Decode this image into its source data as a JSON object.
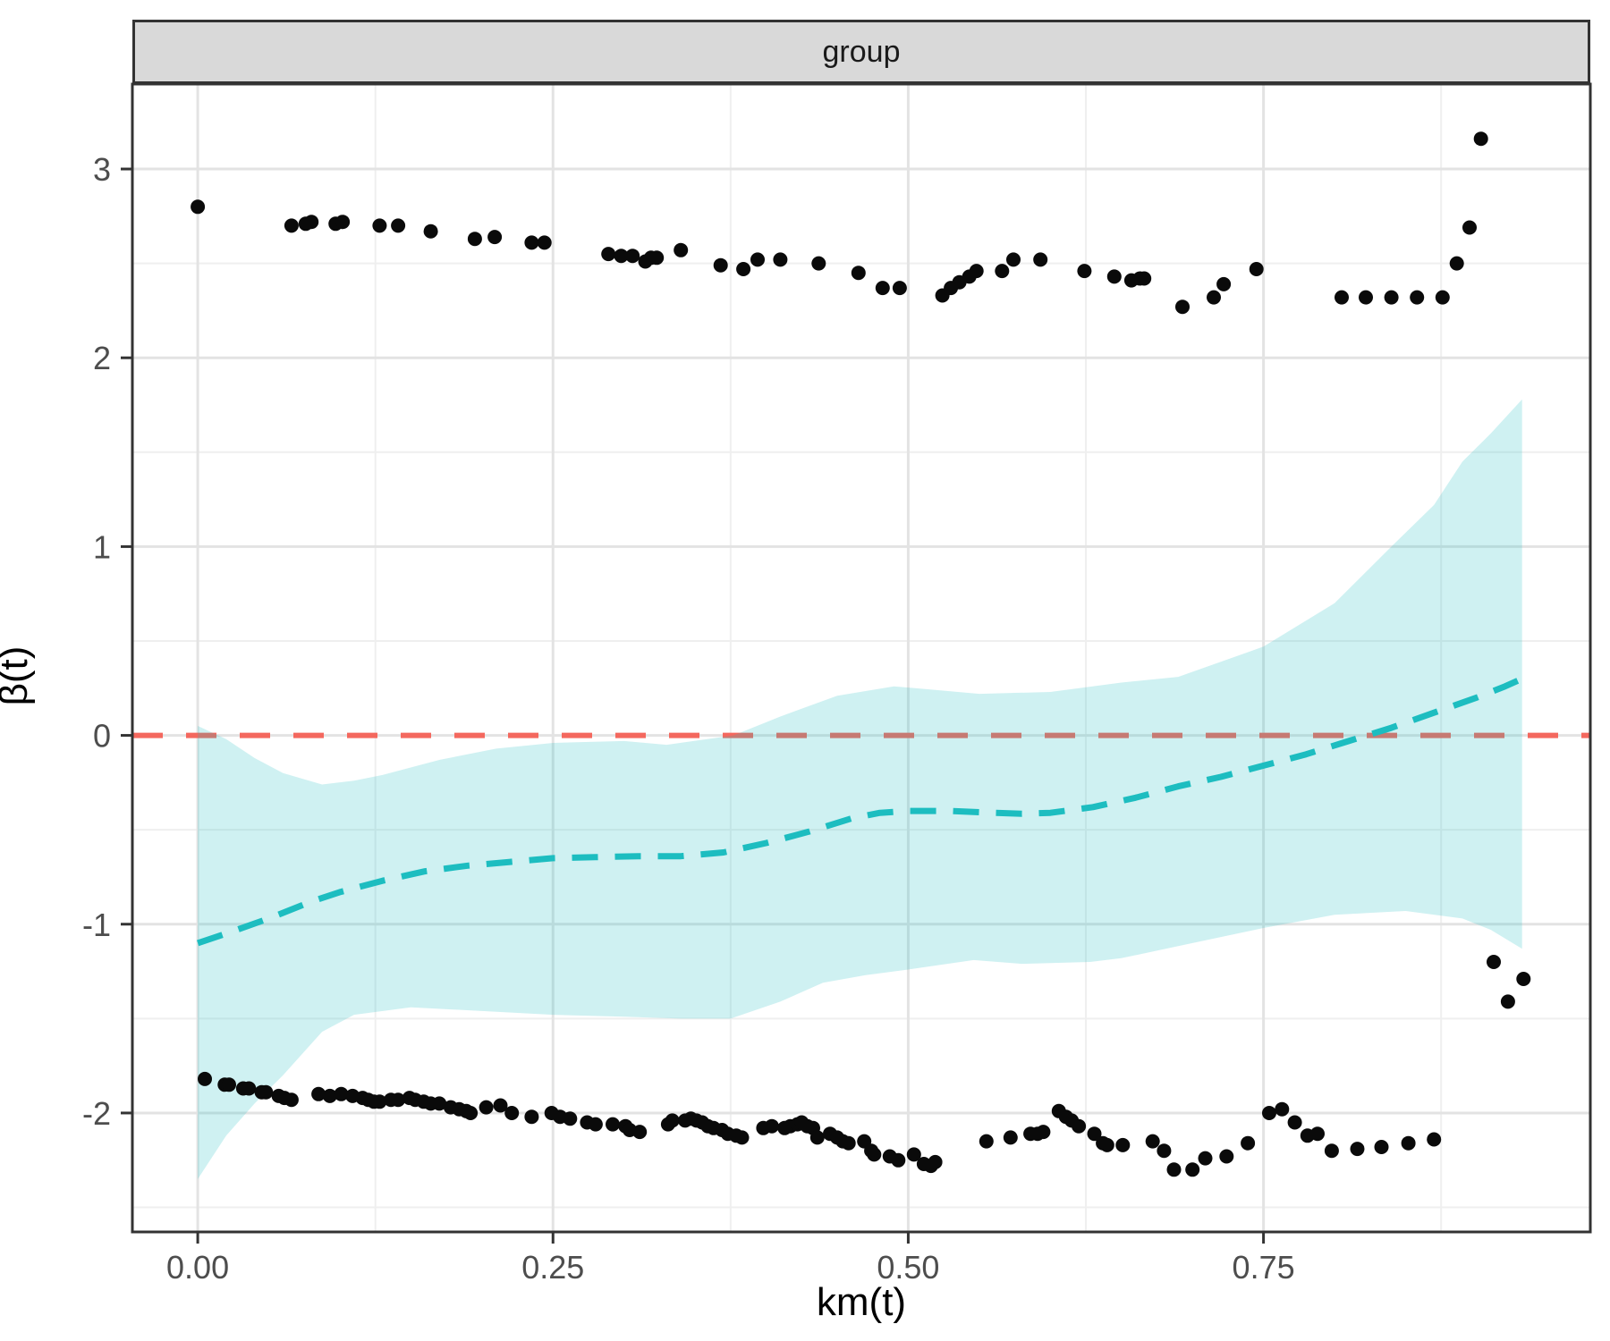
{
  "facet": {
    "label": "group"
  },
  "x_axis": {
    "title": "km(t)",
    "tick_labels": [
      "0.00",
      "0.25",
      "0.50",
      "0.75"
    ],
    "tick_values": [
      0,
      0.25,
      0.5,
      0.75
    ]
  },
  "y_axis": {
    "title": "β(t)",
    "tick_labels": [
      "-2",
      "-1",
      "0",
      "1",
      "2",
      "3"
    ],
    "tick_values": [
      -2,
      -1,
      0,
      1,
      2,
      3
    ]
  },
  "colors": {
    "reference_line": "#F4685E",
    "smooth_line": "#1DBDC0",
    "ribbon_fill": "#1DBDC0",
    "ribbon_opacity": 0.21,
    "point": "#0A0A0A",
    "grid_major": "#E3E3E3",
    "grid_minor": "#EFEFEF",
    "panel_border": "#333333",
    "strip_fill": "#D9D9D9",
    "tick_label": "#4D4D4D",
    "tick_mark": "#333333"
  },
  "chart_data": {
    "type": "scatter",
    "title": "group",
    "xlabel": "km(t)",
    "ylabel": "β(t)",
    "xlim": [
      -0.046,
      0.98
    ],
    "ylim": [
      -2.63,
      3.45
    ],
    "x_major": [
      0,
      0.25,
      0.5,
      0.75
    ],
    "x_minor": [
      0.125,
      0.375,
      0.625,
      0.875
    ],
    "y_major": [
      -2,
      -1,
      0,
      1,
      2,
      3
    ],
    "y_minor": [
      -2.5,
      -1.5,
      -0.5,
      0.5,
      1.5,
      2.5
    ],
    "reference_line_y": 0,
    "smooth_line": [
      [
        0.0,
        -1.1
      ],
      [
        0.02,
        -1.05
      ],
      [
        0.05,
        -0.97
      ],
      [
        0.08,
        -0.88
      ],
      [
        0.1,
        -0.83
      ],
      [
        0.13,
        -0.77
      ],
      [
        0.16,
        -0.72
      ],
      [
        0.19,
        -0.69
      ],
      [
        0.22,
        -0.67
      ],
      [
        0.25,
        -0.65
      ],
      [
        0.28,
        -0.645
      ],
      [
        0.31,
        -0.64
      ],
      [
        0.34,
        -0.64
      ],
      [
        0.37,
        -0.62
      ],
      [
        0.4,
        -0.57
      ],
      [
        0.43,
        -0.51
      ],
      [
        0.46,
        -0.44
      ],
      [
        0.48,
        -0.41
      ],
      [
        0.5,
        -0.4
      ],
      [
        0.53,
        -0.4
      ],
      [
        0.56,
        -0.41
      ],
      [
        0.58,
        -0.415
      ],
      [
        0.6,
        -0.41
      ],
      [
        0.63,
        -0.38
      ],
      [
        0.66,
        -0.33
      ],
      [
        0.69,
        -0.27
      ],
      [
        0.72,
        -0.22
      ],
      [
        0.75,
        -0.16
      ],
      [
        0.78,
        -0.1
      ],
      [
        0.81,
        -0.03
      ],
      [
        0.84,
        0.04
      ],
      [
        0.87,
        0.12
      ],
      [
        0.9,
        0.2
      ],
      [
        0.92,
        0.26
      ],
      [
        0.932,
        0.3
      ]
    ],
    "ribbon_upper": [
      [
        0.0,
        0.05
      ],
      [
        0.02,
        -0.02
      ],
      [
        0.04,
        -0.12
      ],
      [
        0.06,
        -0.2
      ],
      [
        0.0875,
        -0.26
      ],
      [
        0.11,
        -0.24
      ],
      [
        0.13,
        -0.21
      ],
      [
        0.17,
        -0.13
      ],
      [
        0.21,
        -0.07
      ],
      [
        0.25,
        -0.04
      ],
      [
        0.3,
        -0.03
      ],
      [
        0.33,
        -0.05
      ],
      [
        0.377,
        0.0
      ],
      [
        0.41,
        0.1
      ],
      [
        0.45,
        0.21
      ],
      [
        0.49,
        0.26
      ],
      [
        0.52,
        0.24
      ],
      [
        0.55,
        0.22
      ],
      [
        0.6,
        0.23
      ],
      [
        0.65,
        0.28
      ],
      [
        0.69,
        0.31
      ],
      [
        0.75,
        0.47
      ],
      [
        0.8,
        0.7
      ],
      [
        0.84,
        1.0
      ],
      [
        0.87,
        1.22
      ],
      [
        0.89,
        1.45
      ],
      [
        0.91,
        1.6
      ],
      [
        0.932,
        1.78
      ]
    ],
    "ribbon_lower": [
      [
        0.0,
        -2.35
      ],
      [
        0.02,
        -2.12
      ],
      [
        0.04,
        -1.95
      ],
      [
        0.06,
        -1.8
      ],
      [
        0.0875,
        -1.57
      ],
      [
        0.11,
        -1.48
      ],
      [
        0.15,
        -1.44
      ],
      [
        0.2,
        -1.46
      ],
      [
        0.25,
        -1.48
      ],
      [
        0.3,
        -1.49
      ],
      [
        0.34,
        -1.5
      ],
      [
        0.375,
        -1.5
      ],
      [
        0.41,
        -1.41
      ],
      [
        0.44,
        -1.31
      ],
      [
        0.47,
        -1.27
      ],
      [
        0.5,
        -1.24
      ],
      [
        0.546,
        -1.19
      ],
      [
        0.58,
        -1.21
      ],
      [
        0.628,
        -1.2
      ],
      [
        0.65,
        -1.18
      ],
      [
        0.7,
        -1.1
      ],
      [
        0.75,
        -1.02
      ],
      [
        0.8,
        -0.95
      ],
      [
        0.85,
        -0.93
      ],
      [
        0.89,
        -0.97
      ],
      [
        0.91,
        -1.03
      ],
      [
        0.932,
        -1.13
      ]
    ],
    "points_upper": [
      [
        0.0,
        2.8
      ],
      [
        0.066,
        2.7
      ],
      [
        0.076,
        2.71
      ],
      [
        0.08,
        2.72
      ],
      [
        0.097,
        2.71
      ],
      [
        0.102,
        2.72
      ],
      [
        0.128,
        2.7
      ],
      [
        0.141,
        2.7
      ],
      [
        0.164,
        2.67
      ],
      [
        0.195,
        2.63
      ],
      [
        0.209,
        2.64
      ],
      [
        0.235,
        2.61
      ],
      [
        0.244,
        2.61
      ],
      [
        0.289,
        2.55
      ],
      [
        0.298,
        2.54
      ],
      [
        0.306,
        2.54
      ],
      [
        0.315,
        2.51
      ],
      [
        0.319,
        2.53
      ],
      [
        0.323,
        2.53
      ],
      [
        0.34,
        2.57
      ],
      [
        0.368,
        2.49
      ],
      [
        0.384,
        2.47
      ],
      [
        0.394,
        2.52
      ],
      [
        0.41,
        2.52
      ],
      [
        0.437,
        2.5
      ],
      [
        0.465,
        2.45
      ],
      [
        0.482,
        2.37
      ],
      [
        0.494,
        2.37
      ],
      [
        0.524,
        2.33
      ],
      [
        0.53,
        2.37
      ],
      [
        0.536,
        2.4
      ],
      [
        0.543,
        2.43
      ],
      [
        0.548,
        2.46
      ],
      [
        0.566,
        2.46
      ],
      [
        0.574,
        2.52
      ],
      [
        0.593,
        2.52
      ],
      [
        0.624,
        2.46
      ],
      [
        0.645,
        2.43
      ],
      [
        0.657,
        2.41
      ],
      [
        0.663,
        2.42
      ],
      [
        0.666,
        2.42
      ],
      [
        0.693,
        2.27
      ],
      [
        0.715,
        2.32
      ],
      [
        0.722,
        2.39
      ],
      [
        0.745,
        2.47
      ],
      [
        0.805,
        2.32
      ],
      [
        0.822,
        2.32
      ],
      [
        0.84,
        2.32
      ],
      [
        0.858,
        2.32
      ],
      [
        0.876,
        2.32
      ],
      [
        0.886,
        2.5
      ],
      [
        0.895,
        2.69
      ],
      [
        0.903,
        3.16
      ]
    ],
    "points_lower": [
      [
        0.005,
        -1.82
      ],
      [
        0.019,
        -1.85
      ],
      [
        0.022,
        -1.85
      ],
      [
        0.032,
        -1.87
      ],
      [
        0.036,
        -1.87
      ],
      [
        0.045,
        -1.89
      ],
      [
        0.048,
        -1.89
      ],
      [
        0.057,
        -1.91
      ],
      [
        0.061,
        -1.92
      ],
      [
        0.066,
        -1.93
      ],
      [
        0.085,
        -1.9
      ],
      [
        0.093,
        -1.91
      ],
      [
        0.101,
        -1.9
      ],
      [
        0.109,
        -1.91
      ],
      [
        0.116,
        -1.92
      ],
      [
        0.12,
        -1.93
      ],
      [
        0.124,
        -1.94
      ],
      [
        0.128,
        -1.94
      ],
      [
        0.136,
        -1.93
      ],
      [
        0.141,
        -1.93
      ],
      [
        0.149,
        -1.92
      ],
      [
        0.153,
        -1.93
      ],
      [
        0.159,
        -1.94
      ],
      [
        0.164,
        -1.95
      ],
      [
        0.17,
        -1.95
      ],
      [
        0.178,
        -1.97
      ],
      [
        0.184,
        -1.98
      ],
      [
        0.189,
        -1.99
      ],
      [
        0.192,
        -2.0
      ],
      [
        0.203,
        -1.97
      ],
      [
        0.213,
        -1.96
      ],
      [
        0.221,
        -2.0
      ],
      [
        0.235,
        -2.02
      ],
      [
        0.249,
        -2.0
      ],
      [
        0.255,
        -2.02
      ],
      [
        0.262,
        -2.03
      ],
      [
        0.274,
        -2.05
      ],
      [
        0.28,
        -2.06
      ],
      [
        0.292,
        -2.06
      ],
      [
        0.301,
        -2.07
      ],
      [
        0.304,
        -2.09
      ],
      [
        0.311,
        -2.1
      ],
      [
        0.331,
        -2.06
      ],
      [
        0.334,
        -2.04
      ],
      [
        0.343,
        -2.04
      ],
      [
        0.347,
        -2.03
      ],
      [
        0.351,
        -2.04
      ],
      [
        0.355,
        -2.05
      ],
      [
        0.359,
        -2.07
      ],
      [
        0.363,
        -2.08
      ],
      [
        0.369,
        -2.09
      ],
      [
        0.373,
        -2.11
      ],
      [
        0.379,
        -2.12
      ],
      [
        0.383,
        -2.13
      ],
      [
        0.398,
        -2.08
      ],
      [
        0.404,
        -2.07
      ],
      [
        0.413,
        -2.08
      ],
      [
        0.417,
        -2.07
      ],
      [
        0.422,
        -2.06
      ],
      [
        0.425,
        -2.05
      ],
      [
        0.429,
        -2.07
      ],
      [
        0.433,
        -2.08
      ],
      [
        0.436,
        -2.13
      ],
      [
        0.445,
        -2.11
      ],
      [
        0.45,
        -2.13
      ],
      [
        0.454,
        -2.15
      ],
      [
        0.458,
        -2.16
      ],
      [
        0.469,
        -2.15
      ],
      [
        0.474,
        -2.2
      ],
      [
        0.476,
        -2.22
      ],
      [
        0.487,
        -2.23
      ],
      [
        0.493,
        -2.25
      ],
      [
        0.504,
        -2.22
      ],
      [
        0.511,
        -2.27
      ],
      [
        0.516,
        -2.28
      ],
      [
        0.519,
        -2.26
      ],
      [
        0.555,
        -2.15
      ],
      [
        0.572,
        -2.13
      ],
      [
        0.586,
        -2.11
      ],
      [
        0.591,
        -2.11
      ],
      [
        0.595,
        -2.1
      ],
      [
        0.606,
        -1.99
      ],
      [
        0.611,
        -2.02
      ],
      [
        0.615,
        -2.04
      ],
      [
        0.62,
        -2.07
      ],
      [
        0.631,
        -2.11
      ],
      [
        0.637,
        -2.16
      ],
      [
        0.64,
        -2.17
      ],
      [
        0.651,
        -2.17
      ],
      [
        0.672,
        -2.15
      ],
      [
        0.68,
        -2.2
      ],
      [
        0.687,
        -2.3
      ],
      [
        0.7,
        -2.3
      ],
      [
        0.709,
        -2.24
      ],
      [
        0.724,
        -2.23
      ],
      [
        0.739,
        -2.16
      ],
      [
        0.754,
        -2.0
      ],
      [
        0.763,
        -1.98
      ],
      [
        0.772,
        -2.05
      ],
      [
        0.781,
        -2.12
      ],
      [
        0.788,
        -2.11
      ],
      [
        0.798,
        -2.2
      ],
      [
        0.816,
        -2.19
      ],
      [
        0.833,
        -2.18
      ],
      [
        0.852,
        -2.16
      ],
      [
        0.87,
        -2.14
      ],
      [
        0.912,
        -1.2
      ],
      [
        0.922,
        -1.41
      ],
      [
        0.933,
        -1.29
      ]
    ]
  }
}
